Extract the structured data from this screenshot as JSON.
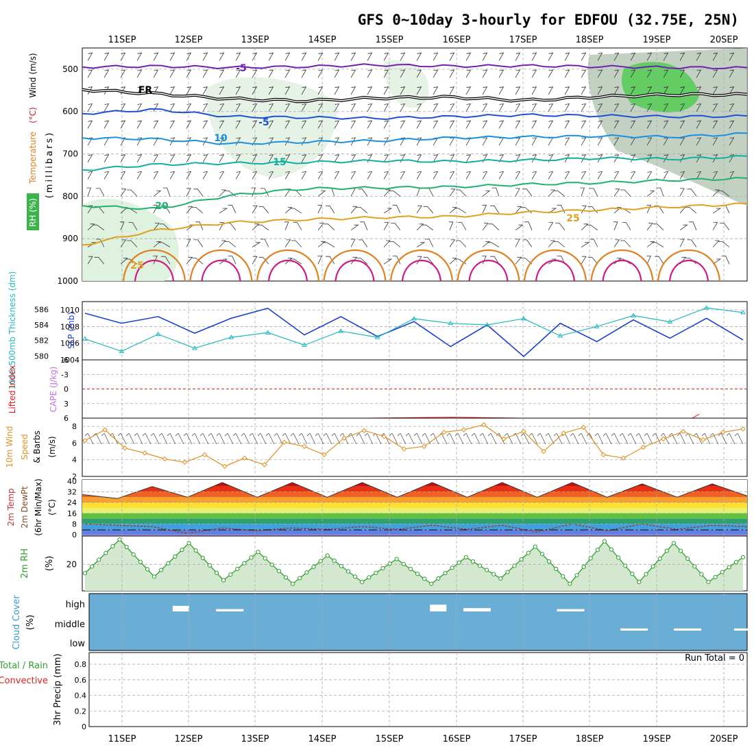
{
  "title": "GFS 0~10day 3-hourly for EDFOU (32.75E, 25N)",
  "run_total": "Run Total = 0",
  "colors": {
    "temperature_label": "#e04040",
    "wind_label": "#404040",
    "rh_shade": "#3cb44b",
    "thickness": "#20b8c0",
    "slp": "#1a3fd0",
    "lifted_index": "#e02020",
    "cape": "#c070e0",
    "wind10m": "#e09020",
    "rh2m": "#2e9e2e",
    "cloud_bg": "#6aaed6",
    "precip_total": "#2ea02e",
    "precip_conv": "#e02020"
  },
  "chart_data": [
    {
      "type": "line",
      "panel": "upper-air cross section",
      "x": [
        "11SEP",
        "12SEP",
        "13SEP",
        "14SEP",
        "15SEP",
        "16SEP",
        "17SEP",
        "18SEP",
        "19SEP",
        "20SEP"
      ],
      "ylabel": "(millibars)",
      "y_ticks": [
        "500",
        "600",
        "700",
        "800",
        "900",
        "1000"
      ],
      "y_axis_labels": {
        "temperature": "Temperature",
        "temperature_unit": "(°C)",
        "wind": "Wind (m/s)",
        "rh": "RH (%)"
      },
      "ylim": [
        450,
        1000
      ],
      "contour_labels": [
        "-5",
        "FR",
        "-5",
        "10",
        "15",
        "20",
        "25",
        "25"
      ],
      "isotherms_mb": [
        {
          "name": "-5",
          "color": "#7020b0",
          "values": [
            495,
            493,
            496,
            494,
            490,
            493,
            492,
            494,
            496,
            497
          ]
        },
        {
          "name": "FR",
          "color": "#000000",
          "values": [
            548,
            558,
            570,
            575,
            568,
            566,
            574,
            565,
            560,
            560
          ]
        },
        {
          "name": "-5",
          "color": "#2050d0",
          "values": [
            605,
            595,
            612,
            614,
            616,
            612,
            608,
            610,
            612,
            611
          ]
        },
        {
          "name": "10",
          "color": "#1890e0",
          "values": [
            662,
            665,
            676,
            672,
            669,
            662,
            660,
            658,
            660,
            652
          ]
        },
        {
          "name": "15",
          "color": "#10b0a0",
          "values": [
            738,
            725,
            722,
            720,
            716,
            718,
            715,
            710,
            712,
            706
          ]
        },
        {
          "name": "20",
          "color": "#20b070",
          "values": [
            822,
            830,
            798,
            782,
            780,
            778,
            772,
            768,
            762,
            758
          ]
        },
        {
          "name": "25",
          "color": "#e0a020",
          "values": [
            915,
            880,
            862,
            855,
            850,
            848,
            838,
            832,
            825,
            818
          ]
        }
      ]
    },
    {
      "type": "line",
      "panel": "thickness-slp",
      "ylabel_left": "1000-500mb Thickness (dm)",
      "ylabel_right": "SLP (mb)",
      "thickness_ticks": [
        "586",
        "584",
        "582",
        "580"
      ],
      "slp_ticks": [
        "1010",
        "1008",
        "1006",
        "1004"
      ],
      "ylim_thickness": [
        579.5,
        587
      ],
      "ylim_slp": [
        1004,
        1011
      ],
      "series": [
        {
          "name": "SLP",
          "values": [
            1009.6,
            1008.4,
            1009.2,
            1007.2,
            1009.0,
            1010.2,
            1007.0,
            1009.2,
            1006.8,
            1008.6,
            1005.6,
            1008.2,
            1004.4,
            1008.4,
            1006.2,
            1008.8,
            1006.6,
            1009.0,
            1006.4
          ]
        },
        {
          "name": "Thickness",
          "values": [
            582.2,
            580.6,
            582.8,
            581.0,
            582.4,
            583.0,
            581.4,
            583.2,
            582.4,
            584.8,
            584.2,
            584.0,
            584.8,
            582.6,
            583.8,
            585.2,
            584.4,
            586.2,
            585.6
          ]
        }
      ]
    },
    {
      "type": "line",
      "panel": "stability",
      "ylabel": "Lifted Index",
      "ylabel2": "CAPE (J/kg)",
      "y_ticks": [
        "-6",
        "-3",
        "0",
        "3",
        "6"
      ],
      "ylim": [
        -6,
        6
      ],
      "series": [
        {
          "name": "Lifted Index",
          "values": [
            6,
            6,
            6,
            6,
            5.8,
            6,
            6,
            6,
            6,
            5.2
          ]
        }
      ]
    },
    {
      "type": "line",
      "panel": "10m wind",
      "ylabel": "10m Wind Speed & Barbs (m/s)",
      "ylabel_parts": [
        "10m Wind",
        "Speed",
        "& Barbs",
        "(m/s)"
      ],
      "y_ticks": [
        "8",
        "6",
        "4",
        "2"
      ],
      "ylim": [
        2,
        9
      ],
      "series": [
        {
          "name": "Speed",
          "values": [
            6.3,
            7.6,
            5.4,
            4.8,
            4.1,
            3.7,
            4.6,
            3.2,
            4.2,
            3.4,
            6.1,
            5.6,
            4.6,
            6.6,
            7.5,
            6.8,
            5.3,
            5.6,
            7.3,
            7.6,
            8.2,
            6.5,
            7.4,
            5.0,
            7.2,
            7.9,
            4.6,
            4.2,
            5.5,
            6.5,
            7.4,
            6.4,
            7.3,
            7.7
          ]
        }
      ]
    },
    {
      "type": "area",
      "panel": "2m temperature",
      "ylabel": "2m Temp 2m DewPt (6hr Min/Max)",
      "ylabel_parts": [
        "2m Temp",
        "2m DewPt",
        "(6hr Min/Max)",
        "(°C)"
      ],
      "y_ticks": [
        "40",
        "32",
        "24",
        "16",
        "8",
        "0"
      ],
      "ylim": [
        -1,
        41
      ],
      "series": [
        {
          "name": "Temperature",
          "values": [
            30,
            27,
            36,
            28,
            39,
            28,
            39,
            28,
            39,
            28,
            39,
            28,
            39,
            28,
            39,
            28,
            38,
            28,
            38,
            29
          ]
        },
        {
          "name": "Dew point",
          "values": [
            8,
            7,
            6,
            1,
            5,
            3,
            5,
            4,
            6,
            4,
            7,
            4,
            7,
            2,
            8,
            3,
            8,
            4,
            7,
            6
          ]
        }
      ]
    },
    {
      "type": "area",
      "panel": "2m relative humidity",
      "ylabel": "2m RH",
      "unit": "(%)",
      "y_ticks": [
        "20"
      ],
      "ylim": [
        5,
        36
      ],
      "series": [
        {
          "name": "RH",
          "values": [
            15,
            34,
            13,
            32,
            11,
            27,
            9,
            25,
            10,
            23,
            9,
            24,
            12,
            30,
            9,
            33,
            10,
            32,
            10,
            24
          ]
        }
      ]
    },
    {
      "type": "bar",
      "panel": "cloud cover",
      "ylabel": "Cloud Cover (%)",
      "ylabel_parts": [
        "Cloud Cover",
        "(%)"
      ],
      "levels": [
        "high",
        "middle",
        "low"
      ],
      "blocks": [
        {
          "level": "high",
          "day": 1.8,
          "fraction": 0.22
        },
        {
          "level": "high",
          "day": 2.45,
          "fraction": 0.05
        },
        {
          "level": "high",
          "day": 5.65,
          "fraction": 0.28
        },
        {
          "level": "high",
          "day": 6.15,
          "fraction": 0.1
        },
        {
          "level": "high",
          "day": 7.55,
          "fraction": 0.05
        },
        {
          "level": "middle",
          "day": 8.5,
          "fraction": 0.04
        },
        {
          "level": "middle",
          "day": 9.3,
          "fraction": 0.04
        },
        {
          "level": "middle",
          "day": 10.2,
          "fraction": 0.04
        }
      ]
    },
    {
      "type": "bar",
      "panel": "precipitation",
      "ylabel": "3hr Precip (mm)",
      "legend": [
        "Total / Rain",
        "Convective"
      ],
      "y_ticks": [
        "0.8",
        "0.6",
        "0.4",
        "0.2",
        "0"
      ],
      "ylim": [
        0,
        0.95
      ],
      "values": []
    }
  ]
}
